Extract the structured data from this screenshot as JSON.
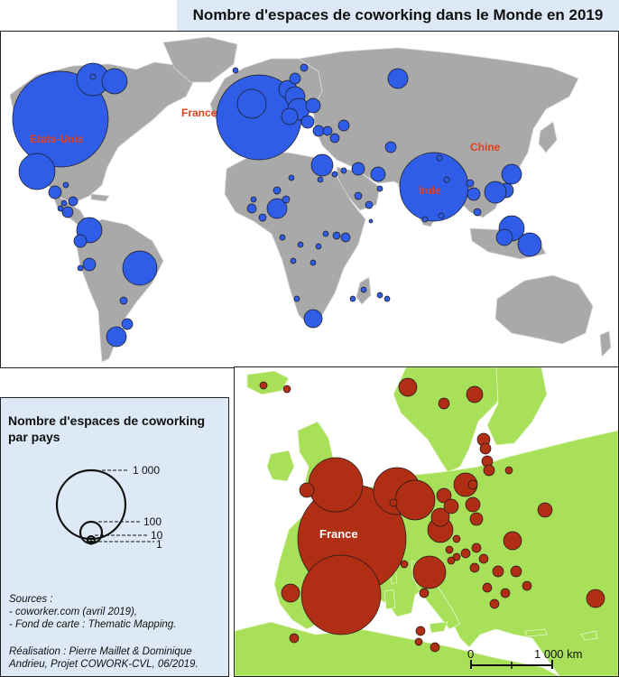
{
  "title": "Nombre d'espaces de coworking dans le Monde en 2019",
  "world_map": {
    "labels": {
      "usa": "Etats-Unis",
      "france": "France",
      "china": "Chine",
      "india": "Inde"
    }
  },
  "legend": {
    "title": "Nombre d'espaces de coworking par pays",
    "values": [
      "1 000",
      "100",
      "10",
      "1"
    ]
  },
  "sources": {
    "heading": "Sources :",
    "line1": "- coworker.com (avril 2019),",
    "line2": "- Fond de carte : Thematic Mapping."
  },
  "credit": {
    "line1": "Réalisation : Pierre Maillet & Dominique",
    "line2": "Andrieu, Projet COWORK-CVL, 06/2019."
  },
  "europe_map": {
    "label_france": "France",
    "scale": {
      "start": "0",
      "end": "1 000 km"
    }
  },
  "colors": {
    "ocean": "#ffffff",
    "land_world": "#a9a9a9",
    "world_symbol": "#2f5de8",
    "land_europe": "#a8e05a",
    "europe_symbol": "#b02e14",
    "label": "#e4401b",
    "legend_bg": "#dde9f6"
  }
}
